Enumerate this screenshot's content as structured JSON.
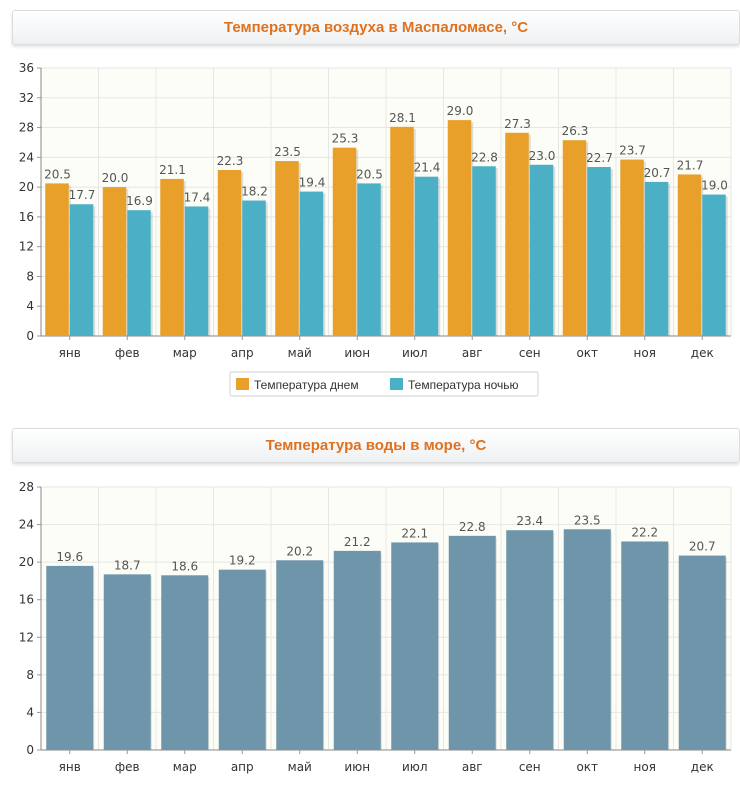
{
  "air_title": "Температура воздуха в Маспаломасе, °C",
  "water_title": "Температура воды в море, °C",
  "chart_data": [
    {
      "type": "bar",
      "title": "Температура воздуха в Маспаломасе, °C",
      "categories": [
        "янв",
        "фев",
        "мар",
        "апр",
        "май",
        "июн",
        "июл",
        "авг",
        "сен",
        "окт",
        "ноя",
        "дек"
      ],
      "series": [
        {
          "name": "Температура днем",
          "color": "#e8a02a",
          "values": [
            20.5,
            20.0,
            21.1,
            22.3,
            23.5,
            25.3,
            28.1,
            29.0,
            27.3,
            26.3,
            23.7,
            21.7
          ]
        },
        {
          "name": "Температура ночью",
          "color": "#4bb0c5",
          "values": [
            17.7,
            16.9,
            17.4,
            18.2,
            19.4,
            20.5,
            21.4,
            22.8,
            23.0,
            22.7,
            20.7,
            19.0
          ]
        }
      ],
      "ylim": [
        0,
        36
      ],
      "yticks": [
        0,
        4,
        8,
        12,
        16,
        20,
        24,
        28,
        32,
        36
      ],
      "grid": true,
      "legend": "bottom-center"
    },
    {
      "type": "bar",
      "title": "Температура воды в море, °C",
      "categories": [
        "янв",
        "фев",
        "мар",
        "апр",
        "май",
        "июн",
        "июл",
        "авг",
        "сен",
        "окт",
        "ноя",
        "дек"
      ],
      "series": [
        {
          "color": "#6e95aa",
          "values": [
            19.6,
            18.7,
            18.6,
            19.2,
            20.2,
            21.2,
            22.1,
            22.8,
            23.4,
            23.5,
            22.2,
            20.7
          ]
        }
      ],
      "ylim": [
        0,
        28
      ],
      "yticks": [
        0,
        4,
        8,
        12,
        16,
        20,
        24,
        28
      ],
      "grid": true
    }
  ]
}
